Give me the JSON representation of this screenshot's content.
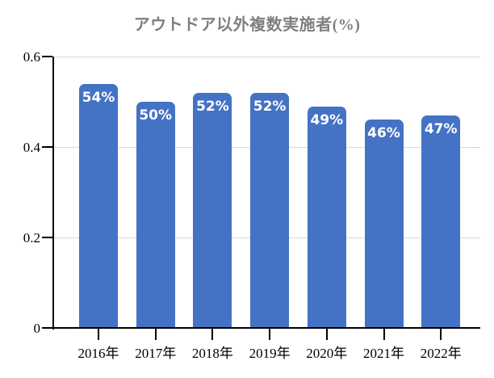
{
  "chart_data": {
    "type": "bar",
    "title": "アウトドア以外複数実施者(%)",
    "categories": [
      "2016年",
      "2017年",
      "2018年",
      "2019年",
      "2020年",
      "2021年",
      "2022年"
    ],
    "values": [
      0.54,
      0.5,
      0.52,
      0.52,
      0.49,
      0.46,
      0.47
    ],
    "bar_labels": [
      "54%",
      "50%",
      "52%",
      "52%",
      "49%",
      "46%",
      "47%"
    ],
    "xlabel": "",
    "ylabel": "",
    "ylim": [
      0,
      0.6
    ],
    "ytick_labels": [
      "0",
      "0.2",
      "0.4",
      "0.6"
    ],
    "ytick_values": [
      0,
      0.2,
      0.4,
      0.6
    ],
    "grid": true,
    "legend": false,
    "colors": {
      "bar": "#4472C4",
      "bar_label": "#FFFFFF",
      "title": "#7F7F7F",
      "gridline": "#D9D9D9",
      "axis": "#000000",
      "tick_label": "#000000"
    }
  }
}
